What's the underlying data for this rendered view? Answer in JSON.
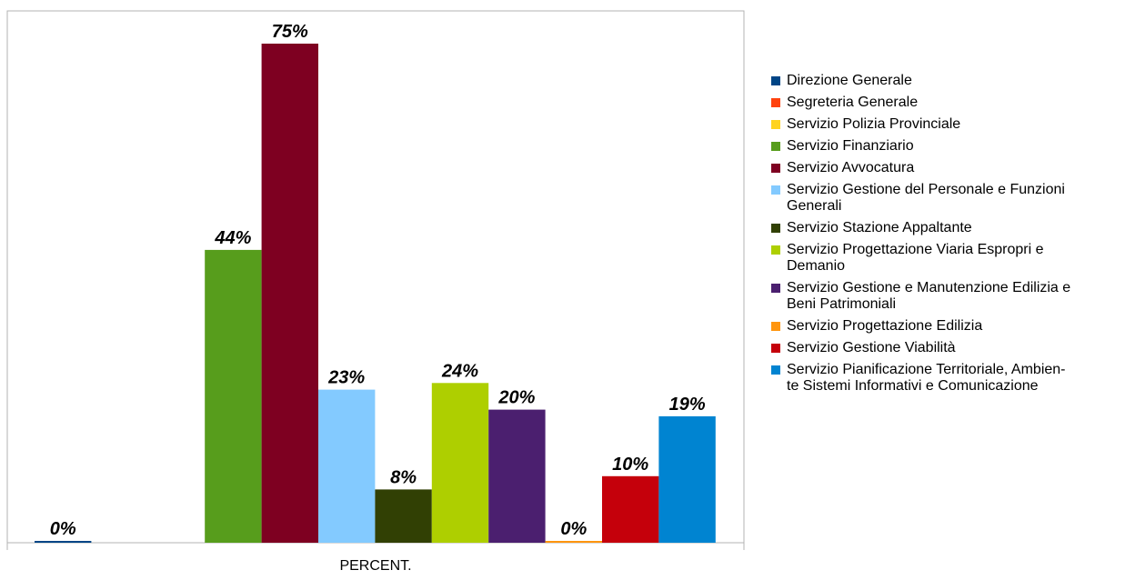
{
  "chart_data": {
    "type": "bar",
    "categories": [
      "PERCENT."
    ],
    "xlabel": "",
    "ylabel": "",
    "ylim": [
      0,
      80
    ],
    "grid": false,
    "legend_position": "right",
    "series": [
      {
        "name": "Direzione Generale",
        "values": [
          0
        ],
        "label": "0%",
        "color": "#004586"
      },
      {
        "name": "Segreteria Generale",
        "values": [
          null
        ],
        "label": "",
        "color": "#ff420e"
      },
      {
        "name": "Servizio Polizia Provinciale",
        "values": [
          null
        ],
        "label": "",
        "color": "#ffd320"
      },
      {
        "name": "Servizio Finanziario",
        "values": [
          44
        ],
        "label": "44%",
        "color": "#579d1c"
      },
      {
        "name": "Servizio Avvocatura",
        "values": [
          75
        ],
        "label": "75%",
        "color": "#7e0021"
      },
      {
        "name": "Servizio Gestione del Personale e Funzioni Generali",
        "values": [
          23
        ],
        "label": "23%",
        "color": "#83caff"
      },
      {
        "name": "Servizio Stazione Appaltante",
        "values": [
          8
        ],
        "label": "8%",
        "color": "#314004"
      },
      {
        "name": "Servizio Progettazione Viaria Espropri e Demanio",
        "values": [
          24
        ],
        "label": "24%",
        "color": "#aecf00"
      },
      {
        "name": "Servizio Gestione e Manutenzione Edilizia e Beni Patrimoniali",
        "values": [
          20
        ],
        "label": "20%",
        "color": "#4b1f6f"
      },
      {
        "name": "Servizio Progettazione Edilizia",
        "values": [
          0
        ],
        "label": "0%",
        "color": "#ff950e"
      },
      {
        "name": "Servizio Gestione Viabilità",
        "values": [
          10
        ],
        "label": "10%",
        "color": "#c5000b"
      },
      {
        "name": "Servizio Pianificazione Territoriale, Ambien-te Sistemi Informativi e Comunicazione",
        "values": [
          19
        ],
        "label": "19%",
        "color": "#0084d1"
      }
    ]
  },
  "legend": {
    "items": [
      {
        "label": "Direzione Generale",
        "color": "#004586"
      },
      {
        "label": "Segreteria Generale",
        "color": "#ff420e"
      },
      {
        "label": "Servizio Polizia Provinciale",
        "color": "#ffd320"
      },
      {
        "label": "Servizio Finanziario",
        "color": "#579d1c"
      },
      {
        "label": "Servizio Avvocatura",
        "color": "#7e0021"
      },
      {
        "label": "Servizio Gestione del Personale e Funzioni\nGenerali",
        "color": "#83caff"
      },
      {
        "label": "Servizio Stazione Appaltante",
        "color": "#314004"
      },
      {
        "label": "Servizio Progettazione Viaria Espropri e\nDemanio",
        "color": "#aecf00"
      },
      {
        "label": "Servizio Gestione e Manutenzione Edilizia e\nBeni Patrimoniali",
        "color": "#4b1f6f"
      },
      {
        "label": "Servizio Progettazione Edilizia",
        "color": "#ff950e"
      },
      {
        "label": "Servizio Gestione Viabilità",
        "color": "#c5000b"
      },
      {
        "label": "Servizio Pianificazione Territoriale, Ambien-\nte Sistemi Informativi e Comunicazione",
        "color": "#0084d1"
      }
    ]
  }
}
